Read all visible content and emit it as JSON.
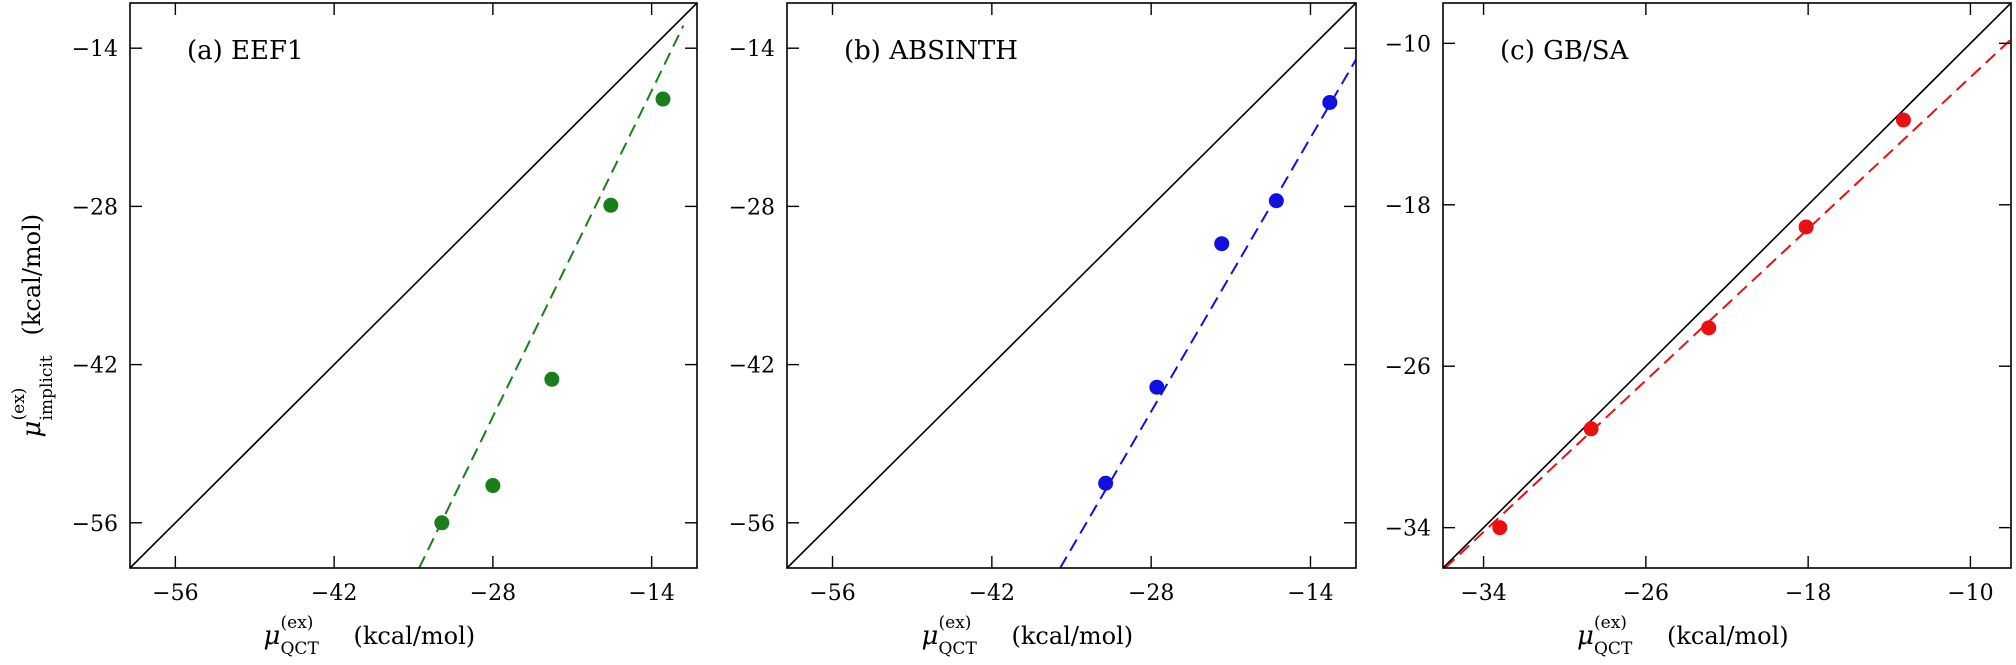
{
  "chart_data": [
    {
      "type": "scatter",
      "panel_label": "(a) EEF1",
      "xlim": [
        -60,
        -10
      ],
      "ylim": [
        -60,
        -10
      ],
      "xticks": [
        -56,
        -42,
        -28,
        -14
      ],
      "yticks": [
        -14,
        -28,
        -42,
        -56
      ],
      "xticklabels": [
        "−56",
        "−42",
        "−28",
        "−14"
      ],
      "yticklabels": [
        "−14",
        "−28",
        "−42",
        "−56"
      ],
      "xlabel": {
        "symbol": "μ",
        "sup": "(ex)",
        "sub": "QCT",
        "unit": "(kcal/mol)"
      },
      "ylabel": {
        "symbol": "μ",
        "sup": "(ex)",
        "sub": "implicit",
        "unit": "(kcal/mol)"
      },
      "color": "#1a7f1a",
      "points": [
        {
          "x": -32.5,
          "y": -56.0
        },
        {
          "x": -28.0,
          "y": -52.7
        },
        {
          "x": -22.8,
          "y": -43.3
        },
        {
          "x": -17.6,
          "y": -27.9
        },
        {
          "x": -13.0,
          "y": -18.5
        }
      ],
      "fit_line": [
        [
          -34.5,
          -60.0
        ],
        [
          -11.2,
          -12.0
        ]
      ],
      "identity_line": true
    },
    {
      "type": "scatter",
      "panel_label": "(b) ABSINTH",
      "xlim": [
        -60,
        -10
      ],
      "ylim": [
        -60,
        -10
      ],
      "xticks": [
        -56,
        -42,
        -28,
        -14
      ],
      "yticks": [
        -14,
        -28,
        -42,
        -56
      ],
      "xticklabels": [
        "−56",
        "−42",
        "−28",
        "−14"
      ],
      "yticklabels": [
        "−14",
        "−28",
        "−42",
        "−56"
      ],
      "xlabel": {
        "symbol": "μ",
        "sup": "(ex)",
        "sub": "QCT",
        "unit": "(kcal/mol)"
      },
      "ylabel": null,
      "color": "#1010e0",
      "points": [
        {
          "x": -32.0,
          "y": -52.5
        },
        {
          "x": -27.5,
          "y": -44.0
        },
        {
          "x": -21.8,
          "y": -31.3
        },
        {
          "x": -17.0,
          "y": -27.5
        },
        {
          "x": -12.3,
          "y": -18.8
        }
      ],
      "fit_line": [
        [
          -36.0,
          -60.0
        ],
        [
          -10.0,
          -15.0
        ]
      ],
      "identity_line": true
    },
    {
      "type": "scatter",
      "panel_label": "(c) GB/SA",
      "xlim": [
        -36,
        -8
      ],
      "ylim": [
        -36,
        -8
      ],
      "xticks": [
        -34,
        -26,
        -18,
        -10
      ],
      "yticks": [
        -10,
        -18,
        -26,
        -34
      ],
      "xticklabels": [
        "−34",
        "−26",
        "−18",
        "−10"
      ],
      "yticklabels": [
        "−10",
        "−18",
        "−26",
        "−34"
      ],
      "xlabel": {
        "symbol": "μ",
        "sup": "(ex)",
        "sub": "QCT",
        "unit": "(kcal/mol)"
      },
      "ylabel": null,
      "color": "#e81010",
      "points": [
        {
          "x": -33.2,
          "y": -34.0
        },
        {
          "x": -28.7,
          "y": -29.1
        },
        {
          "x": -22.9,
          "y": -24.1
        },
        {
          "x": -18.1,
          "y": -19.1
        },
        {
          "x": -13.3,
          "y": -13.8
        }
      ],
      "fit_line": [
        [
          -35.9,
          -36.0
        ],
        [
          -8.0,
          -9.8
        ]
      ],
      "identity_line": true
    }
  ]
}
